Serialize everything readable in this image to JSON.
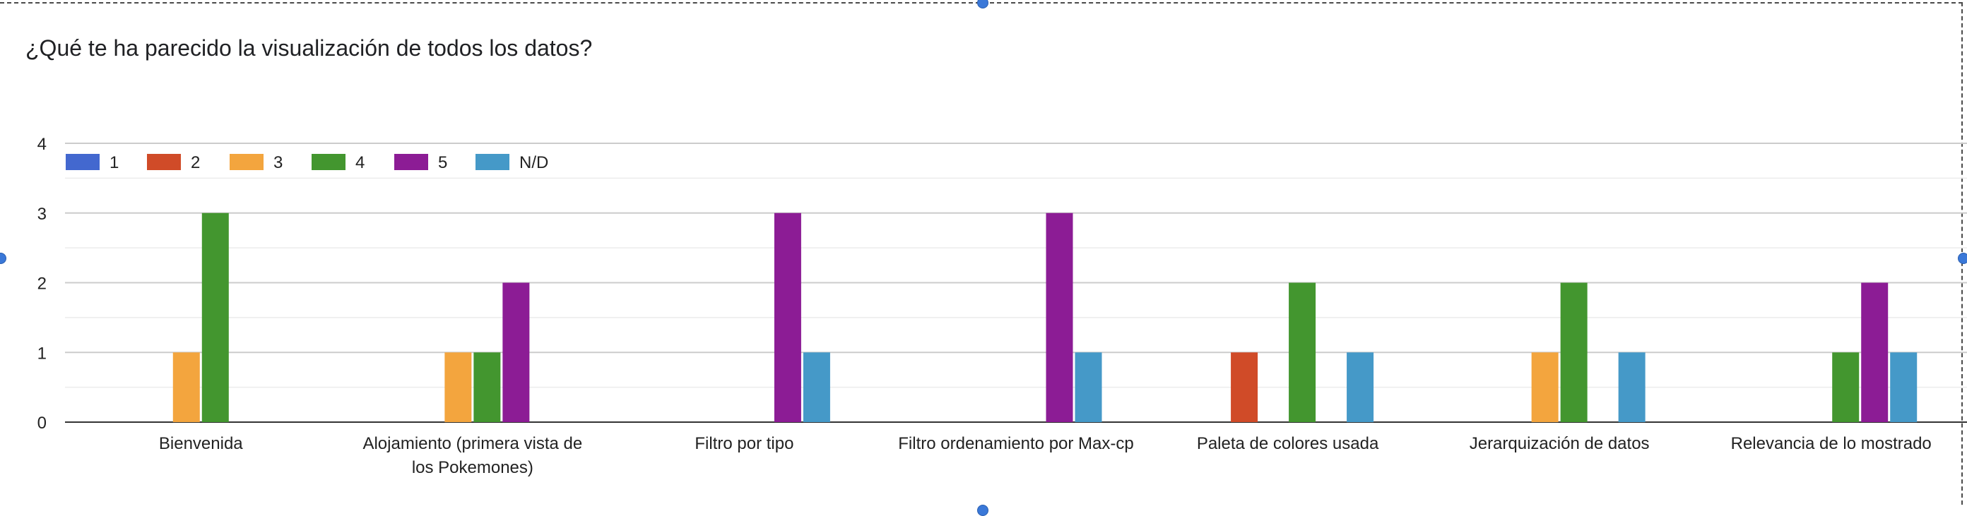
{
  "title": "¿Qué te ha parecido la visualización de todos los datos?",
  "chart_data": {
    "type": "bar",
    "title": "¿Qué te ha parecido la visualización de todos los datos?",
    "xlabel": "",
    "ylabel": "",
    "ylim": [
      0,
      4
    ],
    "yticks": [
      "0",
      "1",
      "2",
      "3",
      "4"
    ],
    "grid": true,
    "legend_position": "top-left",
    "categories": [
      [
        "Bienvenida"
      ],
      [
        "Alojamiento (primera vista de",
        "los Pokemones)"
      ],
      [
        "Filtro por tipo"
      ],
      [
        "Filtro ordenamiento por Max-cp"
      ],
      [
        "Paleta de colores usada"
      ],
      [
        "Jerarquización de datos"
      ],
      [
        "Relevancia de lo mostrado"
      ]
    ],
    "series": [
      {
        "name": "1",
        "color": "#4368cf",
        "values": [
          0,
          0,
          0,
          0,
          0,
          0,
          0
        ]
      },
      {
        "name": "2",
        "color": "#d04b28",
        "values": [
          0,
          0,
          0,
          0,
          1,
          0,
          0
        ]
      },
      {
        "name": "3",
        "color": "#f3a53e",
        "values": [
          1,
          1,
          0,
          0,
          0,
          1,
          0
        ]
      },
      {
        "name": "4",
        "color": "#43962f",
        "values": [
          3,
          1,
          0,
          0,
          2,
          2,
          1
        ]
      },
      {
        "name": "5",
        "color": "#8c1c95",
        "values": [
          0,
          2,
          3,
          3,
          0,
          0,
          2
        ]
      },
      {
        "name": "N/D",
        "color": "#4599c8",
        "values": [
          0,
          0,
          1,
          1,
          1,
          1,
          1
        ]
      }
    ]
  }
}
